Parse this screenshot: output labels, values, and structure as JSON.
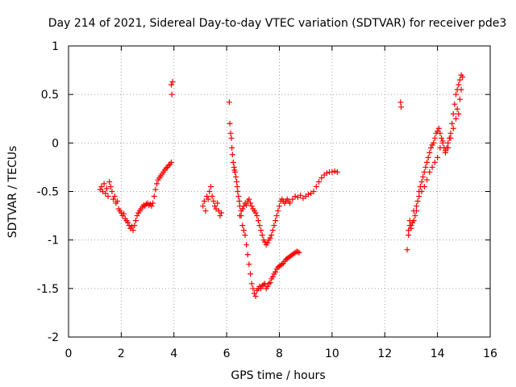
{
  "chart_data": {
    "type": "scatter",
    "title": "Day 214 of 2021, Sidereal Day-to-day VTEC variation (SDTVAR) for receiver pde3",
    "xlabel": "GPS time / hours",
    "ylabel": "SDTVAR / TECUs",
    "xlim": [
      0,
      16
    ],
    "ylim": [
      -2,
      1
    ],
    "xticks": [
      0,
      2,
      4,
      6,
      8,
      10,
      12,
      14,
      16
    ],
    "yticks": [
      -2,
      -1.5,
      -1,
      -0.5,
      0,
      0.5,
      1
    ],
    "ytick_labels": [
      "-2",
      "-1.5",
      "-1",
      "-0.5",
      "0",
      "0.5",
      "1"
    ],
    "grid": true,
    "marker": "+",
    "color": "#ff0000",
    "series": [
      {
        "name": "SDTVAR",
        "x": [
          1.2,
          1.25,
          1.3,
          1.35,
          1.4,
          1.45,
          1.5,
          1.55,
          1.6,
          1.65,
          1.7,
          1.75,
          1.8,
          1.85,
          1.9,
          1.95,
          2.0,
          2.05,
          2.1,
          2.15,
          2.2,
          2.25,
          2.3,
          2.35,
          2.4,
          2.45,
          2.5,
          2.55,
          2.6,
          2.65,
          2.7,
          2.75,
          2.8,
          2.85,
          2.9,
          2.95,
          3.0,
          3.05,
          3.1,
          3.15,
          3.2,
          3.25,
          3.3,
          3.35,
          3.4,
          3.45,
          3.5,
          3.55,
          3.6,
          3.65,
          3.7,
          3.75,
          3.8,
          3.85,
          3.9,
          3.9,
          3.92,
          3.95,
          5.1,
          5.15,
          5.2,
          5.25,
          5.3,
          5.35,
          5.4,
          5.45,
          5.5,
          5.55,
          5.6,
          5.65,
          5.7,
          5.75,
          5.8,
          6.1,
          6.12,
          6.15,
          6.18,
          6.2,
          6.22,
          6.25,
          6.28,
          6.3,
          6.32,
          6.35,
          6.38,
          6.4,
          6.42,
          6.45,
          6.48,
          6.5,
          6.55,
          6.6,
          6.65,
          6.7,
          6.75,
          6.8,
          6.85,
          6.9,
          6.95,
          7.0,
          7.05,
          7.1,
          7.15,
          7.2,
          7.25,
          7.3,
          7.35,
          7.4,
          7.45,
          7.5,
          7.55,
          7.6,
          7.65,
          7.7,
          7.75,
          7.8,
          7.85,
          7.9,
          7.95,
          8.0,
          8.05,
          8.1,
          8.15,
          8.2,
          8.25,
          8.3,
          8.35,
          8.4,
          8.45,
          8.5,
          8.55,
          8.6,
          8.65,
          8.7,
          8.75,
          6.5,
          6.55,
          6.6,
          6.65,
          6.7,
          6.75,
          6.8,
          6.85,
          6.9,
          6.95,
          7.0,
          7.05,
          7.1,
          7.15,
          7.2,
          7.25,
          7.3,
          7.35,
          7.4,
          7.45,
          7.5,
          7.55,
          7.6,
          7.65,
          7.7,
          7.75,
          7.8,
          7.85,
          7.9,
          7.95,
          8.0,
          8.05,
          8.1,
          8.15,
          8.2,
          8.25,
          8.3,
          8.35,
          8.4,
          8.5,
          8.6,
          8.7,
          8.8,
          8.9,
          9.0,
          9.1,
          9.2,
          9.3,
          9.4,
          9.5,
          9.6,
          9.7,
          9.8,
          9.9,
          10.0,
          10.1,
          10.2,
          12.6,
          12.62,
          12.85,
          12.9,
          12.95,
          13.0,
          13.05,
          13.1,
          13.15,
          13.2,
          13.25,
          13.3,
          13.35,
          13.4,
          13.45,
          13.5,
          13.55,
          13.6,
          13.65,
          13.7,
          13.75,
          13.8,
          13.85,
          13.9,
          13.95,
          14.0,
          14.05,
          14.1,
          14.15,
          14.2,
          14.25,
          14.3,
          14.35,
          14.4,
          14.45,
          14.5,
          14.55,
          14.6,
          14.65,
          14.7,
          14.75,
          14.8,
          14.85,
          14.9,
          14.95,
          12.9,
          12.95,
          13.0,
          13.1,
          13.2,
          13.3,
          13.4,
          13.5,
          13.6,
          13.7,
          13.8,
          13.9,
          14.0,
          14.1,
          14.2,
          14.3,
          14.4,
          14.5,
          14.6,
          14.7,
          14.75,
          14.8,
          14.85,
          14.9
        ],
        "y": [
          -0.48,
          -0.45,
          -0.5,
          -0.42,
          -0.52,
          -0.47,
          -0.55,
          -0.4,
          -0.45,
          -0.5,
          -0.58,
          -0.55,
          -0.62,
          -0.6,
          -0.68,
          -0.7,
          -0.72,
          -0.75,
          -0.73,
          -0.78,
          -0.8,
          -0.82,
          -0.85,
          -0.88,
          -0.86,
          -0.9,
          -0.85,
          -0.8,
          -0.75,
          -0.72,
          -0.7,
          -0.68,
          -0.66,
          -0.64,
          -0.65,
          -0.63,
          -0.62,
          -0.64,
          -0.63,
          -0.65,
          -0.62,
          -0.55,
          -0.48,
          -0.42,
          -0.38,
          -0.36,
          -0.34,
          -0.32,
          -0.3,
          -0.28,
          -0.26,
          -0.25,
          -0.23,
          -0.22,
          -0.2,
          0.6,
          0.5,
          0.63,
          -0.65,
          -0.6,
          -0.7,
          -0.55,
          -0.58,
          -0.5,
          -0.45,
          -0.55,
          -0.6,
          -0.65,
          -0.68,
          -0.62,
          -0.7,
          -0.75,
          -0.72,
          0.42,
          0.2,
          0.1,
          0.05,
          -0.05,
          -0.12,
          -0.2,
          -0.25,
          -0.28,
          -0.3,
          -0.35,
          -0.4,
          -0.45,
          -0.5,
          -0.55,
          -0.6,
          -0.65,
          -0.75,
          -0.85,
          -0.9,
          -0.95,
          -1.05,
          -1.15,
          -1.25,
          -1.35,
          -1.45,
          -1.5,
          -1.55,
          -1.58,
          -1.52,
          -1.5,
          -1.48,
          -1.5,
          -1.47,
          -1.46,
          -1.45,
          -1.5,
          -1.48,
          -1.45,
          -1.44,
          -1.4,
          -1.38,
          -1.35,
          -1.33,
          -1.3,
          -1.28,
          -1.27,
          -1.26,
          -1.25,
          -1.24,
          -1.22,
          -1.2,
          -1.19,
          -1.18,
          -1.17,
          -1.16,
          -1.15,
          -1.14,
          -1.13,
          -1.12,
          -1.12,
          -1.13,
          -0.75,
          -0.7,
          -0.68,
          -0.65,
          -0.62,
          -0.64,
          -0.6,
          -0.58,
          -0.62,
          -0.65,
          -0.68,
          -0.7,
          -0.72,
          -0.75,
          -0.8,
          -0.85,
          -0.9,
          -0.95,
          -1.0,
          -1.02,
          -1.05,
          -1.03,
          -1.0,
          -0.98,
          -0.95,
          -0.9,
          -0.85,
          -0.8,
          -0.75,
          -0.7,
          -0.65,
          -0.6,
          -0.58,
          -0.6,
          -0.62,
          -0.6,
          -0.58,
          -0.6,
          -0.62,
          -0.58,
          -0.55,
          -0.56,
          -0.54,
          -0.57,
          -0.55,
          -0.53,
          -0.52,
          -0.5,
          -0.45,
          -0.4,
          -0.36,
          -0.33,
          -0.31,
          -0.3,
          -0.3,
          -0.29,
          -0.3,
          0.42,
          0.37,
          -1.1,
          -0.9,
          -0.8,
          -0.85,
          -0.82,
          -0.8,
          -0.75,
          -0.7,
          -0.6,
          -0.5,
          -0.45,
          -0.4,
          -0.35,
          -0.3,
          -0.25,
          -0.2,
          -0.15,
          -0.1,
          -0.05,
          -0.02,
          0.0,
          0.05,
          0.1,
          0.12,
          0.15,
          0.1,
          0.05,
          0.0,
          -0.05,
          -0.1,
          -0.05,
          0.0,
          0.05,
          0.1,
          0.2,
          0.3,
          0.4,
          0.5,
          0.55,
          0.6,
          0.65,
          0.7,
          0.68,
          -0.95,
          -0.85,
          -0.88,
          -0.7,
          -0.65,
          -0.55,
          -0.5,
          -0.45,
          -0.38,
          -0.3,
          -0.25,
          -0.2,
          -0.15,
          -0.05,
          0.02,
          -0.08,
          -0.05,
          0.05,
          0.15,
          0.25,
          0.35,
          0.3,
          0.45,
          0.55
        ]
      }
    ]
  }
}
